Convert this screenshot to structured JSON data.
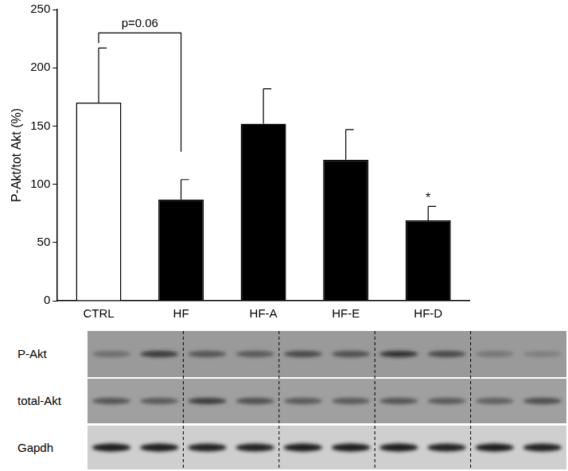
{
  "chart_data": {
    "type": "bar",
    "categories": [
      "CTRL",
      "HF",
      "HF-A",
      "HF-E",
      "HF-D"
    ],
    "values": [
      170,
      87,
      152,
      121,
      69
    ],
    "errors": [
      47,
      17,
      30,
      26,
      12
    ],
    "colors": [
      "#ffffff",
      "#000000",
      "#000000",
      "#000000",
      "#000000"
    ],
    "y_label": "P-Akt/tot Akt (%)",
    "ylim": [
      0,
      250
    ],
    "yticks": [
      0,
      50,
      100,
      150,
      200,
      250
    ],
    "grid": false,
    "annotations": [
      {
        "text": "p=0.06",
        "from": "CTRL",
        "to": "HF",
        "y": 230
      },
      {
        "text": "*",
        "category": "HF-D"
      }
    ]
  },
  "blot": {
    "rows": [
      "P-Akt",
      "total-Akt",
      "Gapdh"
    ]
  }
}
